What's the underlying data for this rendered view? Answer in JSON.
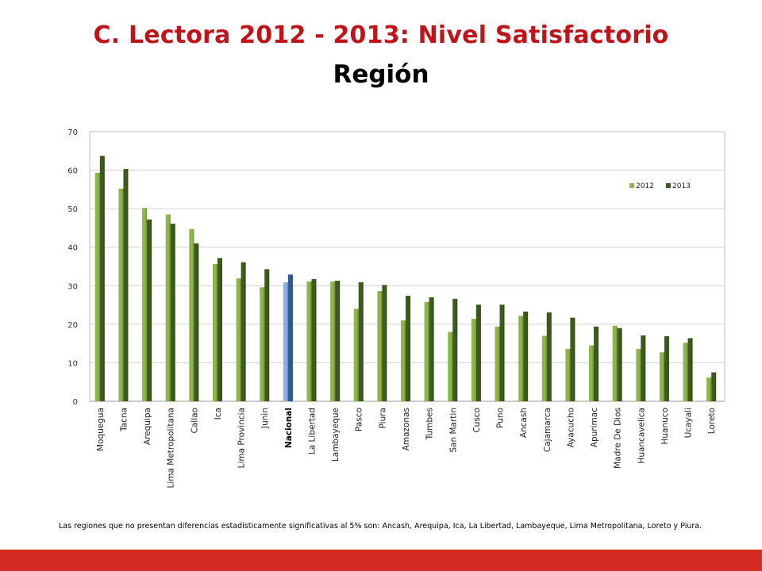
{
  "page": {
    "title": "C. Lectora 2012 - 2013: Nivel Satisfactorio",
    "subtitle": "Región",
    "note": "Las regiones que no presentan diferencias estadísticamente significativas al 5% son: Ancash, Arequipa, Ica, La Libertad, Lambayeque, Lima Metropolitana, Loreto y Piura."
  },
  "colors": {
    "title": "#c0141b",
    "bar_2012": "#8db74a",
    "bar_2013": "#3d5c1c",
    "highlight_2012": "#8eb0e0",
    "highlight_2013": "#2f5a9e",
    "footer": "#d52b23"
  },
  "chart_data": {
    "type": "bar",
    "ylim": [
      0,
      70
    ],
    "yticks": [
      0,
      10,
      20,
      30,
      40,
      50,
      60,
      70
    ],
    "grid": true,
    "legend_position": "top-right",
    "highlight_category": "Nacional",
    "categories": [
      "Moquegua",
      "Tacna",
      "Arequipa",
      "Lima Metropolitana",
      "Callao",
      "Ica",
      "Lima Provincia",
      "Junin",
      "Nacional",
      "La Libertad",
      "Lambayeque",
      "Pasco",
      "Piura",
      "Amazonas",
      "Tumbes",
      "San Martin",
      "Cusco",
      "Puno",
      "Ancash",
      "Cajamarca",
      "Ayacucho",
      "Apurimac",
      "Madre De Dios",
      "Huancavelica",
      "Huanuco",
      "Ucayali",
      "Loreto"
    ],
    "series": [
      {
        "name": "2012",
        "values": [
          59.3,
          55.2,
          50.2,
          48.5,
          44.7,
          35.6,
          31.9,
          29.6,
          30.9,
          31.1,
          31.1,
          24.0,
          28.6,
          21.0,
          25.8,
          18.0,
          21.4,
          19.4,
          22.2,
          17.0,
          13.6,
          14.5,
          19.6,
          13.6,
          12.7,
          15.2,
          6.2
        ]
      },
      {
        "name": "2013",
        "values": [
          63.7,
          60.3,
          47.2,
          46.1,
          41.0,
          37.2,
          36.1,
          34.3,
          32.9,
          31.7,
          31.3,
          30.9,
          30.2,
          27.4,
          27.0,
          26.6,
          25.1,
          25.1,
          23.3,
          23.1,
          21.7,
          19.4,
          19.0,
          17.1,
          16.9,
          16.4,
          7.5
        ]
      }
    ]
  }
}
